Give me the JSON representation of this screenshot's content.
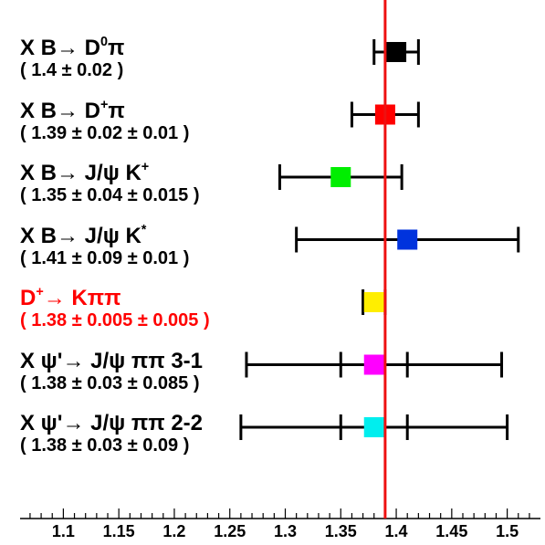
{
  "chart_data": {
    "type": "scatter",
    "title": "",
    "xlabel": "",
    "ylabel": "",
    "xlim": [
      1.075,
      1.525
    ],
    "xticks": [
      "1.1",
      "1.15",
      "1.2",
      "1.25",
      "1.3",
      "1.35",
      "1.4",
      "1.45",
      "1.5"
    ],
    "reference_line": {
      "x": 1.39,
      "color": "#ee1111"
    },
    "grid": false,
    "legend": "none",
    "series": [
      {
        "label_main": "X B→ D",
        "label_sup": "0",
        "label_tail": "π",
        "value_text": "( 1.4 ± 0.02 )",
        "text_color": "#000000",
        "value": 1.4,
        "stat_err": 0.02,
        "syst_err": 0,
        "marker_color": "#000000"
      },
      {
        "label_main": "X B→ D",
        "label_sup": "+",
        "label_tail": "π",
        "value_text": "( 1.39 ± 0.02 ± 0.01 )",
        "text_color": "#000000",
        "value": 1.39,
        "stat_err": 0.02,
        "syst_err": 0.01,
        "marker_color": "#ff0000"
      },
      {
        "label_main": "X B→ J/ψ K",
        "label_sup": "+",
        "label_tail": "",
        "value_text": "( 1.35 ± 0.04 ± 0.015 )",
        "text_color": "#000000",
        "value": 1.35,
        "stat_err": 0.04,
        "syst_err": 0.015,
        "marker_color": "#00ee00"
      },
      {
        "label_main": "X B→ J/ψ K",
        "label_sup": "*",
        "label_tail": "",
        "value_text": "( 1.41 ± 0.09 ± 0.01 )",
        "text_color": "#000000",
        "value": 1.41,
        "stat_err": 0.09,
        "syst_err": 0.01,
        "marker_color": "#0033dd"
      },
      {
        "label_main": "D",
        "label_sup": "+",
        "label_tail": "→ Kππ",
        "value_text": "( 1.38 ± 0.005 ± 0.005 )",
        "text_color": "#ff0000",
        "value": 1.38,
        "stat_err": 0.005,
        "syst_err": 0.005,
        "marker_color": "#ffee00"
      },
      {
        "label_main": "X ψ'→ J/ψ ππ 3-1",
        "label_sup": "",
        "label_tail": "",
        "value_text": "( 1.38 ± 0.03 ± 0.085 )",
        "text_color": "#000000",
        "value": 1.38,
        "stat_err": 0.03,
        "syst_err": 0.085,
        "marker_color": "#ff00ff"
      },
      {
        "label_main": "X ψ'→ J/ψ ππ 2-2",
        "label_sup": "",
        "label_tail": "",
        "value_text": "( 1.38 ± 0.03 ± 0.09 )",
        "text_color": "#000000",
        "value": 1.38,
        "stat_err": 0.03,
        "syst_err": 0.09,
        "marker_color": "#00eeee"
      }
    ]
  }
}
